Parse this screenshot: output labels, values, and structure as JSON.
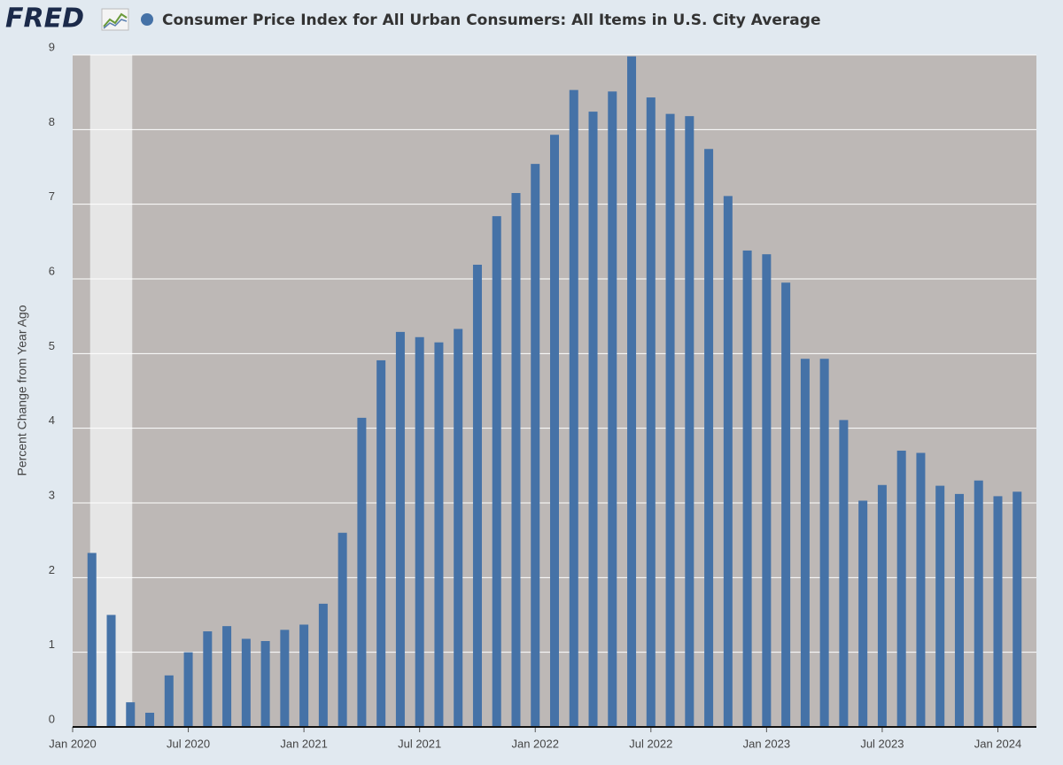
{
  "logo": "FRED",
  "chart_data": {
    "type": "bar",
    "title": "Consumer Price Index for All Urban Consumers: All Items in U.S. City Average",
    "y_label": "Percent Change from Year Ago",
    "color": "#4572a7",
    "x": [
      "2020-02",
      "2020-03",
      "2020-04",
      "2020-05",
      "2020-06",
      "2020-07",
      "2020-08",
      "2020-09",
      "2020-10",
      "2020-11",
      "2020-12",
      "2021-01",
      "2021-02",
      "2021-03",
      "2021-04",
      "2021-05",
      "2021-06",
      "2021-07",
      "2021-08",
      "2021-09",
      "2021-10",
      "2021-11",
      "2021-12",
      "2022-01",
      "2022-02",
      "2022-03",
      "2022-04",
      "2022-05",
      "2022-06",
      "2022-07",
      "2022-08",
      "2022-09",
      "2022-10",
      "2022-11",
      "2022-12",
      "2023-01",
      "2023-02",
      "2023-03",
      "2023-04",
      "2023-05",
      "2023-06",
      "2023-07",
      "2023-08",
      "2023-09",
      "2023-10",
      "2023-11",
      "2023-12",
      "2024-01",
      "2024-02"
    ],
    "values": [
      2.33,
      1.5,
      0.33,
      0.19,
      0.69,
      1.0,
      1.28,
      1.35,
      1.18,
      1.15,
      1.3,
      1.37,
      1.65,
      2.6,
      4.14,
      4.91,
      5.29,
      5.22,
      5.15,
      5.33,
      6.19,
      6.84,
      7.15,
      7.54,
      7.93,
      8.53,
      8.24,
      8.51,
      8.98,
      8.43,
      8.21,
      8.18,
      7.74,
      7.11,
      6.38,
      6.33,
      5.95,
      4.93,
      4.93,
      4.11,
      3.03,
      3.24,
      3.7,
      3.67,
      3.23,
      3.12,
      3.3,
      3.09,
      3.15
    ],
    "xlim": [
      "2020-01",
      "2024-03"
    ],
    "xticks": [
      {
        "value": "2020-01",
        "label": "Jan 2020"
      },
      {
        "value": "2020-07",
        "label": "Jul 2020"
      },
      {
        "value": "2021-01",
        "label": "Jan 2021"
      },
      {
        "value": "2021-07",
        "label": "Jul 2021"
      },
      {
        "value": "2022-01",
        "label": "Jan 2022"
      },
      {
        "value": "2022-07",
        "label": "Jul 2022"
      },
      {
        "value": "2023-01",
        "label": "Jan 2023"
      },
      {
        "value": "2023-07",
        "label": "Jul 2023"
      },
      {
        "value": "2024-01",
        "label": "Jan 2024"
      }
    ],
    "ylim": [
      0,
      9
    ],
    "yticks": [
      0,
      1,
      2,
      3,
      4,
      5,
      6,
      7,
      8,
      9
    ],
    "grid": true,
    "recession": [
      "2020-02",
      "2020-04"
    ]
  }
}
